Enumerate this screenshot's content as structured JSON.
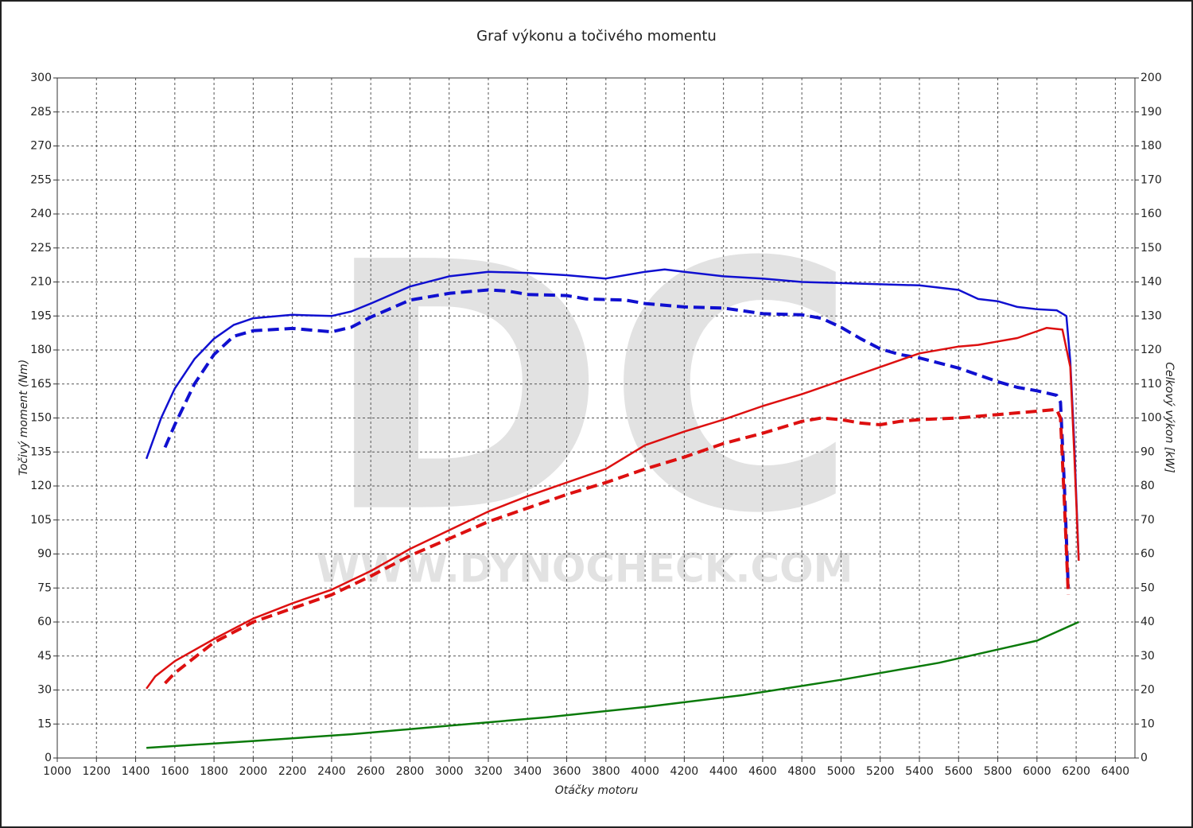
{
  "chart_data": {
    "type": "line",
    "title": "Graf výkonu a točivého momentu",
    "x_label": "Otáčky motoru",
    "y_label": "Točivý moment (Nm)",
    "y2_label": "Celkový výkon [kW]",
    "watermark": "DC",
    "watermark_url": "WWW.DYNOCHECK.COM",
    "grid": true,
    "xlim": [
      1000,
      6500
    ],
    "xticks": [
      1000,
      1200,
      1400,
      1600,
      1800,
      2000,
      2200,
      2400,
      2600,
      2800,
      3000,
      3200,
      3400,
      3600,
      3800,
      4000,
      4200,
      4400,
      4600,
      4800,
      5000,
      5200,
      5400,
      5600,
      5800,
      6000,
      6200,
      6400
    ],
    "ylim": [
      0,
      300
    ],
    "yticks": [
      0,
      15,
      30,
      45,
      60,
      75,
      90,
      105,
      120,
      135,
      150,
      165,
      180,
      195,
      210,
      225,
      240,
      255,
      270,
      285,
      300
    ],
    "y2lim": [
      0,
      200
    ],
    "y2ticks": [
      0,
      10,
      20,
      30,
      40,
      50,
      60,
      70,
      80,
      90,
      100,
      110,
      120,
      130,
      140,
      150,
      160,
      170,
      180,
      190,
      200
    ],
    "series": [
      {
        "color": "#1010d0",
        "dash": false,
        "axis": "y",
        "x": [
          1455,
          1530,
          1600,
          1700,
          1800,
          1900,
          2000,
          2200,
          2400,
          2500,
          2600,
          2800,
          3000,
          3200,
          3400,
          3600,
          3800,
          4000,
          4100,
          4200,
          4400,
          4600,
          4800,
          5000,
          5200,
          5400,
          5600,
          5700,
          5800,
          5900,
          6000,
          6100,
          6150,
          6170,
          6190,
          6213
        ],
        "values": [
          132,
          150,
          163,
          176,
          185,
          191,
          194,
          195.5,
          195,
          197,
          200.5,
          208,
          212.5,
          214.5,
          214,
          213,
          211.5,
          214.5,
          215.5,
          214.5,
          212.5,
          211.5,
          210,
          209.5,
          209,
          208.5,
          206.5,
          202.5,
          201.5,
          199,
          198,
          197.5,
          195,
          175,
          140,
          87
        ]
      },
      {
        "color": "#1010d0",
        "dash": true,
        "axis": "y",
        "x": [
          1550,
          1600,
          1700,
          1800,
          1900,
          2000,
          2200,
          2400,
          2500,
          2600,
          2800,
          3000,
          3200,
          3300,
          3400,
          3600,
          3700,
          3900,
          4000,
          4200,
          4400,
          4600,
          4800,
          4900,
          5000,
          5100,
          5200,
          5300,
          5400,
          5600,
          5700,
          5800,
          5900,
          6000,
          6100,
          6120,
          6140,
          6160
        ],
        "values": [
          137,
          147,
          165,
          178,
          186,
          188.5,
          189.5,
          188,
          190,
          194.5,
          202,
          205,
          206.5,
          206,
          204.5,
          204,
          202.5,
          202,
          200.5,
          199,
          198.5,
          196,
          195.5,
          194,
          190,
          185,
          180.5,
          178,
          176.5,
          172,
          169,
          166,
          163.5,
          162,
          160,
          157,
          120,
          75
        ]
      },
      {
        "color": "#dd1010",
        "dash": false,
        "axis": "y2",
        "x": [
          1455,
          1500,
          1600,
          1800,
          2000,
          2200,
          2400,
          2600,
          2800,
          3000,
          3200,
          3400,
          3600,
          3800,
          4000,
          4200,
          4400,
          4600,
          4800,
          5000,
          5200,
          5400,
          5600,
          5700,
          5800,
          5900,
          6000,
          6050,
          6130,
          6170,
          6190,
          6213
        ],
        "values": [
          20.4,
          24,
          28.5,
          35,
          41,
          45.5,
          49.5,
          55,
          61.5,
          67,
          72.5,
          77,
          81,
          85,
          92,
          96,
          99.5,
          103.5,
          107,
          111,
          115,
          119,
          121,
          121.5,
          122.5,
          123.5,
          125.5,
          126.5,
          126,
          115,
          90,
          58
        ]
      },
      {
        "color": "#dd1010",
        "dash": true,
        "axis": "y2",
        "x": [
          1550,
          1600,
          1800,
          2000,
          2200,
          2400,
          2600,
          2800,
          3000,
          3200,
          3400,
          3600,
          3800,
          4000,
          4200,
          4400,
          4600,
          4800,
          4900,
          5000,
          5100,
          5200,
          5300,
          5400,
          5600,
          5800,
          6000,
          6100,
          6120,
          6140,
          6160
        ],
        "values": [
          22,
          25,
          34,
          40,
          44,
          48,
          53.5,
          59.5,
          64.5,
          69.5,
          73.5,
          77.5,
          81,
          85,
          88.5,
          92.5,
          95.5,
          99,
          100,
          99.5,
          98.5,
          98,
          99,
          99.5,
          100,
          101,
          102,
          102.5,
          100,
          75,
          48
        ]
      },
      {
        "color": "#0a7a0a",
        "dash": false,
        "axis": "y2",
        "x": [
          1455,
          2000,
          2500,
          3000,
          3500,
          4000,
          4500,
          5000,
          5500,
          6000,
          6213
        ],
        "values": [
          3,
          5,
          7,
          9.5,
          12,
          15,
          18.5,
          23,
          28,
          34.5,
          40
        ]
      }
    ]
  }
}
